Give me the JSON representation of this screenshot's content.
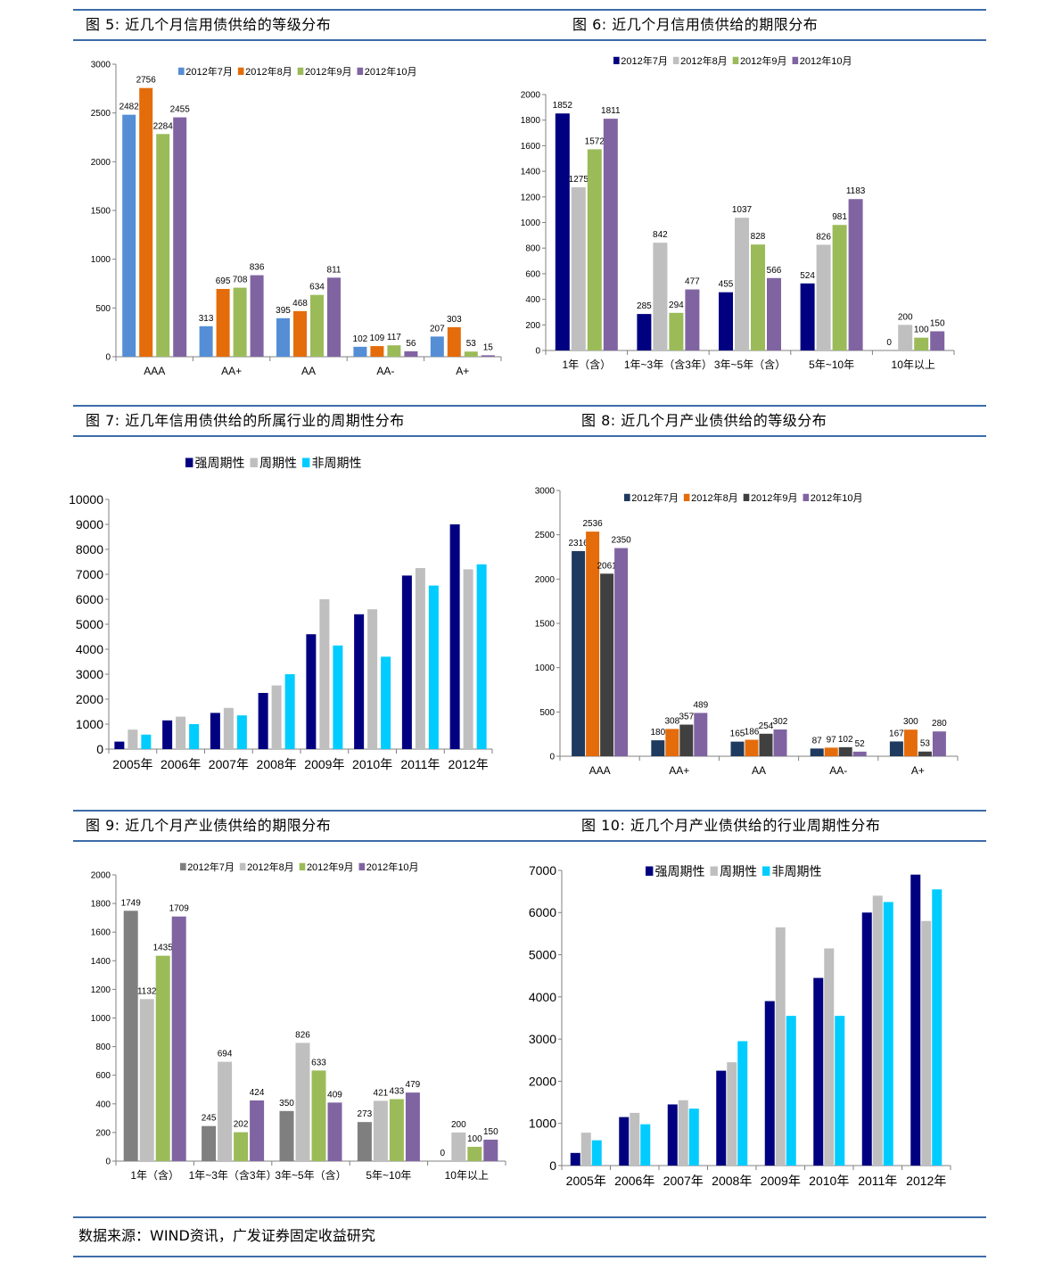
{
  "section_titles": {
    "fig5": "图 5:  近几个月信用债供给的等级分布",
    "fig6": "图 6:  近几个月信用债供给的期限分布",
    "fig7": "图 7:  近几年信用债供给的所属行业的周期性分布",
    "fig8": "图 8:  近几个月产业债供给的等级分布",
    "fig9": "图 9:  近几个月产业债供给的期限分布",
    "fig10": "图 10:  近几个月产业债供给的行业周期性分布"
  },
  "source_note": "数据来源：WIND资讯，广发证券固定收益研究",
  "chart_data": [
    {
      "id": "fig5",
      "type": "bar",
      "title": "",
      "xlabel": "",
      "ylabel": "",
      "categories": [
        "AAA",
        "AA+",
        "AA",
        "AA-",
        "A+"
      ],
      "ylim": [
        0,
        3000
      ],
      "yticks": [
        0,
        500,
        1000,
        1500,
        2000,
        2500,
        3000
      ],
      "grid": false,
      "legend": "top",
      "data_labels": true,
      "series": [
        {
          "name": "2012年7月",
          "color": "#558ed5",
          "values": [
            2482,
            313,
            395,
            102,
            207
          ]
        },
        {
          "name": "2012年8月",
          "color": "#e46c0a",
          "values": [
            2756,
            695,
            468,
            109,
            303
          ]
        },
        {
          "name": "2012年9月",
          "color": "#9bbb59",
          "values": [
            2284,
            708,
            634,
            117,
            53
          ]
        },
        {
          "name": "2012年10月",
          "color": "#8064a2",
          "values": [
            2455,
            836,
            811,
            56,
            15
          ]
        }
      ]
    },
    {
      "id": "fig6",
      "type": "bar",
      "title": "",
      "xlabel": "",
      "ylabel": "",
      "categories": [
        "1年（含）",
        "1年~3年（含3年）",
        "3年~5年（含）",
        "5年~10年",
        "10年以上"
      ],
      "ylim": [
        0,
        2000
      ],
      "yticks": [
        0,
        200,
        400,
        600,
        800,
        1000,
        1200,
        1400,
        1600,
        1800,
        2000
      ],
      "grid": false,
      "legend": "top",
      "data_labels": true,
      "series": [
        {
          "name": "2012年7月",
          "color": "#000080",
          "values": [
            1852,
            285,
            455,
            524,
            0
          ]
        },
        {
          "name": "2012年8月",
          "color": "#bfbfbf",
          "values": [
            1275,
            842,
            1037,
            826,
            200
          ]
        },
        {
          "name": "2012年9月",
          "color": "#9bbb59",
          "values": [
            1572,
            294,
            828,
            981,
            100
          ]
        },
        {
          "name": "2012年10月",
          "color": "#8064a2",
          "values": [
            1811,
            477,
            566,
            1183,
            150
          ]
        }
      ]
    },
    {
      "id": "fig7",
      "type": "bar",
      "title": "",
      "xlabel": "",
      "ylabel": "",
      "categories": [
        "2005年",
        "2006年",
        "2007年",
        "2008年",
        "2009年",
        "2010年",
        "2011年",
        "2012年"
      ],
      "ylim": [
        0,
        10000
      ],
      "yticks": [
        0,
        1000,
        2000,
        3000,
        4000,
        5000,
        6000,
        7000,
        8000,
        9000,
        10000
      ],
      "grid": false,
      "legend": "top",
      "data_labels": false,
      "series": [
        {
          "name": "强周期性",
          "color": "#000080",
          "values": [
            300,
            1150,
            1450,
            2250,
            4600,
            5400,
            6950,
            9000
          ]
        },
        {
          "name": "周期性",
          "color": "#bfbfbf",
          "values": [
            780,
            1300,
            1650,
            2550,
            6000,
            5600,
            7250,
            7200
          ]
        },
        {
          "name": "非周期性",
          "color": "#00ccff",
          "values": [
            580,
            1000,
            1350,
            3000,
            4150,
            3700,
            6550,
            7400
          ]
        }
      ]
    },
    {
      "id": "fig8",
      "type": "bar",
      "title": "",
      "xlabel": "",
      "ylabel": "",
      "categories": [
        "AAA",
        "AA+",
        "AA",
        "AA-",
        "A+"
      ],
      "ylim": [
        0,
        3000
      ],
      "yticks": [
        0,
        500,
        1000,
        1500,
        2000,
        2500,
        3000
      ],
      "grid": false,
      "legend": "top",
      "data_labels": true,
      "series": [
        {
          "name": "2012年7月",
          "color": "#1f3a5f",
          "values": [
            2316,
            180,
            165,
            87,
            167
          ]
        },
        {
          "name": "2012年8月",
          "color": "#e46c0a",
          "values": [
            2536,
            308,
            186,
            97,
            300
          ]
        },
        {
          "name": "2012年9月",
          "color": "#404040",
          "values": [
            2061,
            357,
            254,
            102,
            53
          ]
        },
        {
          "name": "2012年10月",
          "color": "#8064a2",
          "values": [
            2350,
            489,
            302,
            52,
            280
          ]
        }
      ]
    },
    {
      "id": "fig9",
      "type": "bar",
      "title": "",
      "xlabel": "",
      "ylabel": "",
      "categories": [
        "1年（含）",
        "1年~3年（含3年）",
        "3年~5年（含）",
        "5年~10年",
        "10年以上"
      ],
      "ylim": [
        0,
        2000
      ],
      "yticks": [
        0,
        200,
        400,
        600,
        800,
        1000,
        1200,
        1400,
        1600,
        1800,
        2000
      ],
      "grid": false,
      "legend": "top",
      "data_labels": true,
      "series": [
        {
          "name": "2012年7月",
          "color": "#7f7f7f",
          "values": [
            1749,
            245,
            350,
            273,
            0
          ]
        },
        {
          "name": "2012年8月",
          "color": "#bfbfbf",
          "values": [
            1132,
            694,
            826,
            421,
            200
          ]
        },
        {
          "name": "2012年9月",
          "color": "#9bbb59",
          "values": [
            1435,
            202,
            633,
            433,
            100
          ]
        },
        {
          "name": "2012年10月",
          "color": "#8064a2",
          "values": [
            1709,
            424,
            409,
            479,
            150
          ]
        }
      ]
    },
    {
      "id": "fig10",
      "type": "bar",
      "title": "",
      "xlabel": "",
      "ylabel": "",
      "categories": [
        "2005年",
        "2006年",
        "2007年",
        "2008年",
        "2009年",
        "2010年",
        "2011年",
        "2012年"
      ],
      "ylim": [
        0,
        7000
      ],
      "yticks": [
        0,
        1000,
        2000,
        3000,
        4000,
        5000,
        6000,
        7000
      ],
      "grid": false,
      "legend": "top",
      "data_labels": false,
      "series": [
        {
          "name": "强周期性",
          "color": "#000080",
          "values": [
            300,
            1150,
            1450,
            2250,
            3900,
            4450,
            6000,
            6900
          ]
        },
        {
          "name": "周期性",
          "color": "#bfbfbf",
          "values": [
            780,
            1250,
            1550,
            2450,
            5650,
            5150,
            6400,
            5800
          ]
        },
        {
          "name": "非周期性",
          "color": "#00ccff",
          "values": [
            600,
            980,
            1350,
            2950,
            3550,
            3550,
            6250,
            6550
          ]
        }
      ]
    }
  ]
}
